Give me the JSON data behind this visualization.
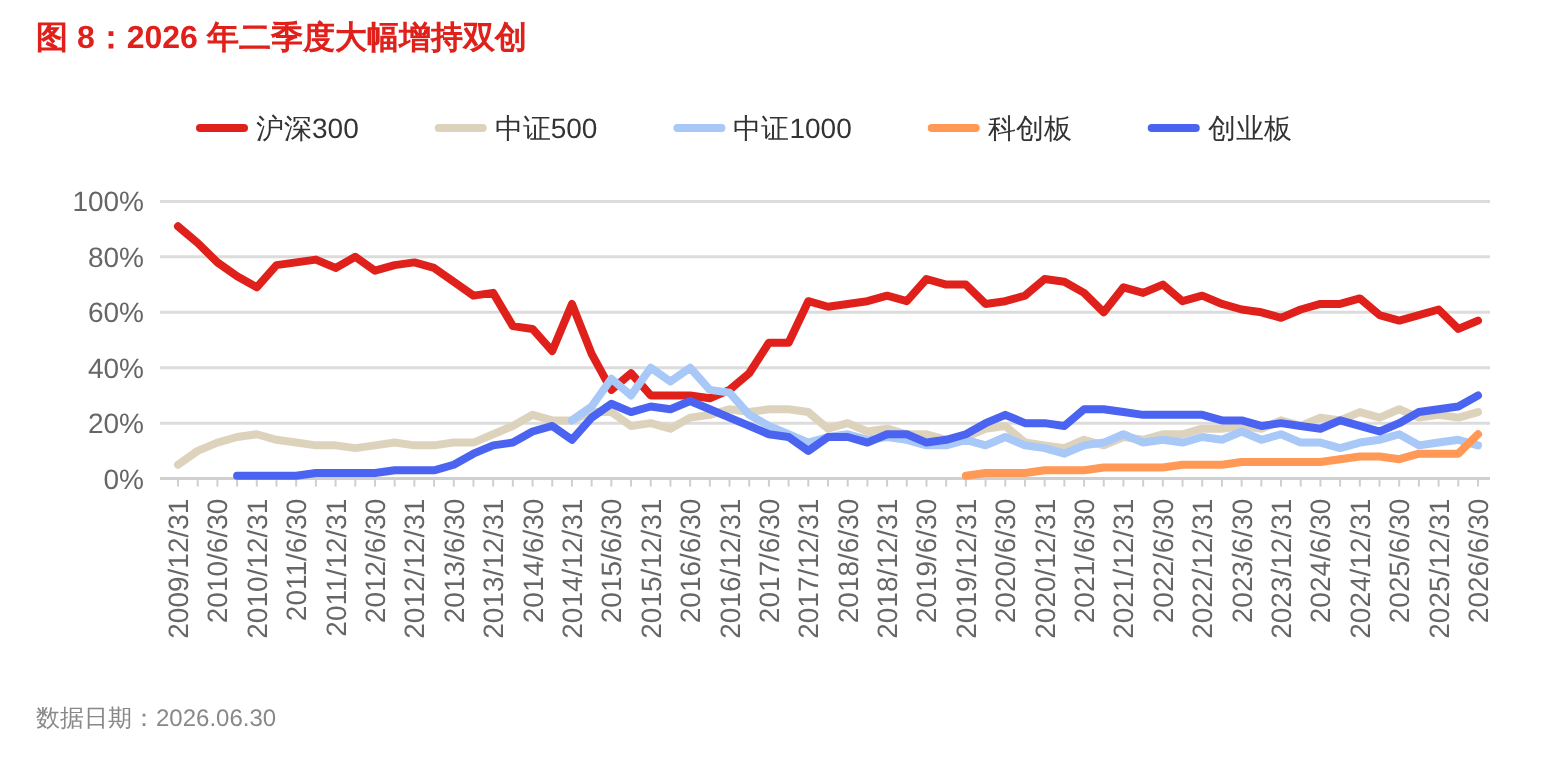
{
  "chart_data": {
    "type": "line",
    "title": "图 8：2026 年二季度大幅增持双创",
    "categories": [
      "2009/12/31",
      null,
      "2010/6/30",
      null,
      "2010/12/31",
      null,
      "2011/6/30",
      null,
      "2011/12/31",
      null,
      "2012/6/30",
      null,
      "2012/12/31",
      null,
      "2013/6/30",
      null,
      "2013/12/31",
      null,
      "2014/6/30",
      null,
      "2014/12/31",
      null,
      "2015/6/30",
      null,
      "2015/12/31",
      null,
      "2016/6/30",
      null,
      "2016/12/31",
      null,
      "2017/6/30",
      null,
      "2017/12/31",
      null,
      "2018/6/30",
      null,
      "2018/12/31",
      null,
      "2019/6/30",
      null,
      "2019/12/31",
      null,
      "2020/6/30",
      null,
      "2020/12/31",
      null,
      "2021/6/30",
      null,
      "2021/12/31",
      null,
      "2022/6/30",
      null,
      "2022/12/31",
      null,
      "2023/6/30",
      null,
      "2023/12/31",
      null,
      "2024/6/30",
      null,
      "2024/12/31",
      null,
      "2025/6/30",
      null,
      "2025/12/31",
      null,
      "2026/6/30"
    ],
    "series": [
      {
        "name": "沪深300",
        "color": "#e0201b",
        "values": [
          91,
          85,
          78,
          73,
          69,
          77,
          78,
          79,
          76,
          80,
          75,
          77,
          78,
          76,
          71,
          66,
          67,
          55,
          54,
          46,
          63,
          45,
          32,
          38,
          30,
          30,
          30,
          29,
          32,
          38,
          49,
          49,
          64,
          62,
          63,
          64,
          66,
          64,
          72,
          70,
          70,
          63,
          64,
          66,
          72,
          71,
          67,
          60,
          69,
          67,
          70,
          64,
          66,
          63,
          61,
          60,
          58,
          61,
          63,
          63,
          65,
          59,
          57,
          59,
          61,
          54,
          57
        ]
      },
      {
        "name": "中证500",
        "color": "#ddd3bd",
        "values": [
          5,
          10,
          13,
          15,
          16,
          14,
          13,
          12,
          12,
          11,
          12,
          13,
          12,
          12,
          13,
          13,
          16,
          19,
          23,
          21,
          21,
          24,
          24,
          19,
          20,
          18,
          22,
          23,
          25,
          24,
          25,
          25,
          24,
          18,
          20,
          17,
          18,
          16,
          16,
          14,
          15,
          18,
          19,
          13,
          12,
          11,
          14,
          12,
          15,
          14,
          16,
          16,
          18,
          18,
          19,
          18,
          21,
          19,
          22,
          21,
          24,
          22,
          25,
          22,
          23,
          22,
          24
        ]
      },
      {
        "name": "中证1000",
        "color": "#a8c8f8",
        "values": [
          null,
          null,
          null,
          null,
          null,
          null,
          null,
          null,
          null,
          null,
          null,
          null,
          null,
          null,
          null,
          null,
          null,
          null,
          null,
          null,
          21,
          26,
          36,
          30,
          40,
          35,
          40,
          32,
          31,
          23,
          19,
          16,
          13,
          15,
          16,
          14,
          15,
          14,
          12,
          12,
          14,
          12,
          15,
          12,
          11,
          9,
          12,
          13,
          16,
          13,
          14,
          13,
          15,
          14,
          17,
          14,
          16,
          13,
          13,
          11,
          13,
          14,
          16,
          12,
          13,
          14,
          12
        ]
      },
      {
        "name": "科创板",
        "color": "#ff9955",
        "values": [
          null,
          null,
          null,
          null,
          null,
          null,
          null,
          null,
          null,
          null,
          null,
          null,
          null,
          null,
          null,
          null,
          null,
          null,
          null,
          null,
          null,
          null,
          null,
          null,
          null,
          null,
          null,
          null,
          null,
          null,
          null,
          null,
          null,
          null,
          null,
          null,
          null,
          null,
          null,
          null,
          1,
          2,
          2,
          2,
          3,
          3,
          3,
          4,
          4,
          4,
          4,
          5,
          5,
          5,
          6,
          6,
          6,
          6,
          6,
          7,
          8,
          8,
          7,
          9,
          9,
          9,
          16
        ]
      },
      {
        "name": "创业板",
        "color": "#4a63f0",
        "values": [
          null,
          null,
          null,
          1,
          1,
          1,
          1,
          2,
          2,
          2,
          2,
          3,
          3,
          3,
          5,
          9,
          12,
          13,
          17,
          19,
          14,
          22,
          27,
          24,
          26,
          25,
          28,
          25,
          22,
          19,
          16,
          15,
          10,
          15,
          15,
          13,
          16,
          16,
          13,
          14,
          16,
          20,
          23,
          20,
          20,
          19,
          25,
          25,
          24,
          23,
          23,
          23,
          23,
          21,
          21,
          19,
          20,
          19,
          18,
          21,
          19,
          17,
          20,
          24,
          25,
          26,
          30
        ]
      }
    ],
    "ylim": [
      0,
      100
    ],
    "yticks": [
      {
        "value": 0,
        "label": "0%"
      },
      {
        "value": 20,
        "label": "20%"
      },
      {
        "value": 40,
        "label": "40%"
      },
      {
        "value": 60,
        "label": "60%"
      },
      {
        "value": 80,
        "label": "80%"
      },
      {
        "value": 100,
        "label": "100%"
      }
    ],
    "grid": "y",
    "legend": "top",
    "marker": "none",
    "line_style": "solid",
    "annotations": [
      "数据日期：2026.06.30"
    ]
  }
}
